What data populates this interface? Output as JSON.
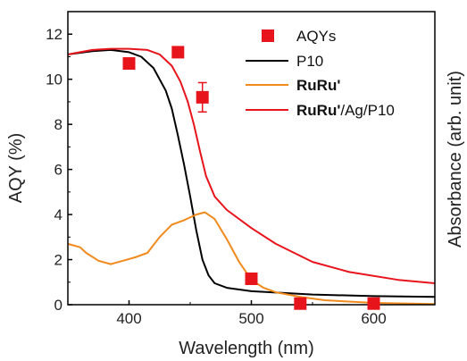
{
  "chart_data": {
    "type": "line",
    "xlabel": "Wavelength (nm)",
    "ylabel": "AQY (%)",
    "y2label": "Absorbance (arb. unit)",
    "xlim": [
      350,
      650
    ],
    "ylim": [
      0,
      13
    ],
    "x_ticks": [
      400,
      500,
      600
    ],
    "y_ticks": [
      0,
      2,
      4,
      6,
      8,
      10,
      12
    ],
    "x_tick_labels": [
      "400",
      "500",
      "600"
    ],
    "y_tick_labels": [
      "0",
      "2",
      "4",
      "6",
      "8",
      "10",
      "12"
    ],
    "legend_position": "top-right",
    "series": [
      {
        "name": "AQYs",
        "kind": "scatter",
        "marker": "square",
        "color": "#e8141c",
        "points": [
          {
            "x": 400,
            "y": 10.7,
            "err": 0
          },
          {
            "x": 440,
            "y": 11.2,
            "err": 0
          },
          {
            "x": 460,
            "y": 9.2,
            "err": 0.65
          },
          {
            "x": 500,
            "y": 1.15,
            "err": 0
          },
          {
            "x": 540,
            "y": 0.05,
            "err": 0
          },
          {
            "x": 600,
            "y": 0.05,
            "err": 0
          }
        ]
      },
      {
        "name": "P10",
        "kind": "line",
        "color": "#000000",
        "points": [
          [
            350,
            11.1
          ],
          [
            370,
            11.25
          ],
          [
            385,
            11.3
          ],
          [
            400,
            11.2
          ],
          [
            410,
            11.0
          ],
          [
            420,
            10.5
          ],
          [
            430,
            9.5
          ],
          [
            435,
            8.7
          ],
          [
            440,
            7.5
          ],
          [
            445,
            6.2
          ],
          [
            450,
            4.8
          ],
          [
            455,
            3.3
          ],
          [
            460,
            2.0
          ],
          [
            465,
            1.3
          ],
          [
            470,
            0.95
          ],
          [
            480,
            0.75
          ],
          [
            500,
            0.6
          ],
          [
            550,
            0.45
          ],
          [
            600,
            0.38
          ],
          [
            650,
            0.35
          ]
        ]
      },
      {
        "name": "RuRu'",
        "kind": "line",
        "color": "#f08a1c",
        "points": [
          [
            350,
            2.7
          ],
          [
            360,
            2.55
          ],
          [
            365,
            2.3
          ],
          [
            375,
            1.95
          ],
          [
            385,
            1.8
          ],
          [
            395,
            1.95
          ],
          [
            405,
            2.1
          ],
          [
            415,
            2.3
          ],
          [
            425,
            3.0
          ],
          [
            435,
            3.55
          ],
          [
            445,
            3.75
          ],
          [
            455,
            4.0
          ],
          [
            462,
            4.1
          ],
          [
            470,
            3.8
          ],
          [
            480,
            2.9
          ],
          [
            490,
            1.9
          ],
          [
            500,
            1.1
          ],
          [
            510,
            0.75
          ],
          [
            520,
            0.55
          ],
          [
            540,
            0.35
          ],
          [
            560,
            0.2
          ],
          [
            600,
            0.08
          ],
          [
            650,
            0.03
          ]
        ]
      },
      {
        "name": "RuRu'/Ag/P10",
        "kind": "line",
        "color": "#e8141c",
        "points": [
          [
            350,
            11.1
          ],
          [
            370,
            11.3
          ],
          [
            385,
            11.35
          ],
          [
            400,
            11.35
          ],
          [
            415,
            11.3
          ],
          [
            425,
            11.1
          ],
          [
            435,
            10.6
          ],
          [
            442,
            9.9
          ],
          [
            448,
            9.0
          ],
          [
            453,
            8.0
          ],
          [
            458,
            6.8
          ],
          [
            463,
            5.7
          ],
          [
            470,
            4.8
          ],
          [
            480,
            4.2
          ],
          [
            500,
            3.4
          ],
          [
            520,
            2.7
          ],
          [
            550,
            1.9
          ],
          [
            580,
            1.45
          ],
          [
            620,
            1.1
          ],
          [
            650,
            0.95
          ]
        ]
      }
    ],
    "legend": [
      {
        "prefix": "AQYs",
        "suffix": ""
      },
      {
        "prefix": "P10",
        "suffix": ""
      },
      {
        "prefix": "RuRu'",
        "suffix": ""
      },
      {
        "prefix": "RuRu'",
        "suffix": "/Ag/P10"
      }
    ]
  }
}
